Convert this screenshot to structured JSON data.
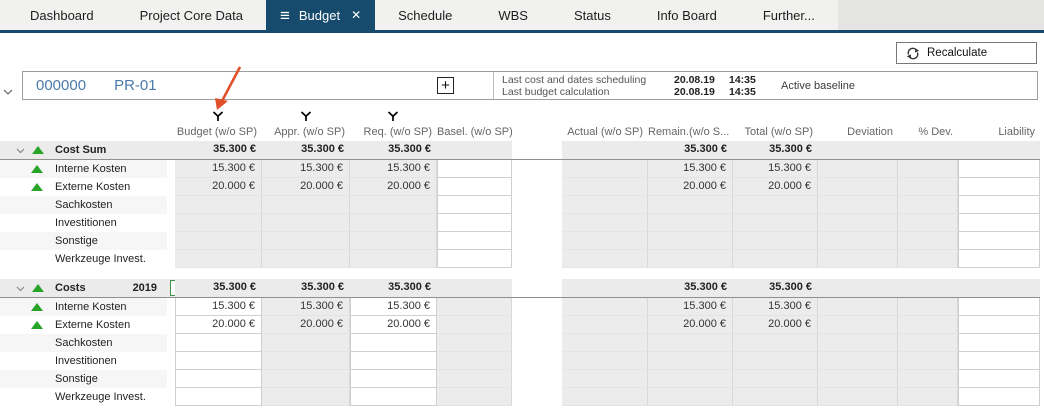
{
  "tabs": [
    {
      "label": "Dashboard",
      "active": false
    },
    {
      "label": "Project Core Data",
      "active": false
    },
    {
      "label": "Budget",
      "active": true
    },
    {
      "label": "Schedule",
      "active": false
    },
    {
      "label": "WBS",
      "active": false
    },
    {
      "label": "Status",
      "active": false
    },
    {
      "label": "Info Board",
      "active": false
    },
    {
      "label": "Further...",
      "active": false
    }
  ],
  "toolbar": {
    "recalculate_label": "Recalculate"
  },
  "project": {
    "number": "000000",
    "id": "PR-01",
    "add_button": "+",
    "info_rows": [
      {
        "label": "Last cost and dates scheduling",
        "date": "20.08.19",
        "time": "14:35"
      },
      {
        "label": "Last budget calculation",
        "date": "20.08.19",
        "time": "14:35"
      }
    ],
    "baseline": "Active baseline"
  },
  "colors": {
    "accent_blue": "#174b6d",
    "link_blue": "#4d7aa8",
    "indicator_green": "#28a428",
    "annotation_arrow": "#e0512b",
    "disabled_cell": "#ececec",
    "group_row": "#ebebeb"
  },
  "annotation": {
    "type": "arrow",
    "points_at": "budget-column-filter"
  },
  "table": {
    "columns": [
      "Budget (w/o SP)",
      "Appr. (w/o SP)",
      "Req. (w/o SP)",
      "Basel. (w/o SP)",
      "Actual (w/o SP)",
      "Remain.(w/o S...",
      "Total (w/o SP)",
      "Deviation",
      "% Dev.",
      "Liability"
    ],
    "column_keys": [
      "budget",
      "appr",
      "req",
      "basel",
      "actual",
      "remain",
      "total",
      "deviation",
      "pdev",
      "liability"
    ],
    "filter_icon_columns": [
      0,
      1,
      2
    ],
    "groups": [
      {
        "title": "Cost Sum",
        "year": "",
        "checkbox": null,
        "indicator": true,
        "values": [
          "35.300 €",
          "35.300 €",
          "35.300 €",
          "",
          "",
          "35.300 €",
          "35.300 €",
          "",
          "",
          ""
        ],
        "editable_cols": [
          3,
          9
        ],
        "rows": [
          {
            "label": "Interne Kosten",
            "indicator": true,
            "values": [
              "15.300 €",
              "15.300 €",
              "15.300 €",
              "",
              "",
              "15.300 €",
              "15.300 €",
              "",
              "",
              ""
            ]
          },
          {
            "label": "Externe Kosten",
            "indicator": true,
            "values": [
              "20.000 €",
              "20.000 €",
              "20.000 €",
              "",
              "",
              "20.000 €",
              "20.000 €",
              "",
              "",
              ""
            ]
          },
          {
            "label": "Sachkosten",
            "indicator": false,
            "values": [
              "",
              "",
              "",
              "",
              "",
              "",
              "",
              "",
              "",
              ""
            ]
          },
          {
            "label": "Investitionen",
            "indicator": false,
            "values": [
              "",
              "",
              "",
              "",
              "",
              "",
              "",
              "",
              "",
              ""
            ]
          },
          {
            "label": "Sonstige",
            "indicator": false,
            "values": [
              "",
              "",
              "",
              "",
              "",
              "",
              "",
              "",
              "",
              ""
            ]
          },
          {
            "label": "Werkzeuge Invest.",
            "indicator": false,
            "values": [
              "",
              "",
              "",
              "",
              "",
              "",
              "",
              "",
              "",
              ""
            ]
          }
        ]
      },
      {
        "title": "Costs",
        "year": "2019",
        "checkbox": true,
        "indicator": true,
        "values": [
          "35.300 €",
          "35.300 €",
          "35.300 €",
          "",
          "",
          "35.300 €",
          "35.300 €",
          "",
          "",
          ""
        ],
        "editable_cols": [
          0,
          2,
          9
        ],
        "rows": [
          {
            "label": "Interne Kosten",
            "indicator": true,
            "values": [
              "15.300 €",
              "15.300 €",
              "15.300 €",
              "",
              "",
              "15.300 €",
              "15.300 €",
              "",
              "",
              ""
            ]
          },
          {
            "label": "Externe Kosten",
            "indicator": true,
            "values": [
              "20.000 €",
              "20.000 €",
              "20.000 €",
              "",
              "",
              "20.000 €",
              "20.000 €",
              "",
              "",
              ""
            ]
          },
          {
            "label": "Sachkosten",
            "indicator": false,
            "values": [
              "",
              "",
              "",
              "",
              "",
              "",
              "",
              "",
              "",
              ""
            ]
          },
          {
            "label": "Investitionen",
            "indicator": false,
            "values": [
              "",
              "",
              "",
              "",
              "",
              "",
              "",
              "",
              "",
              ""
            ]
          },
          {
            "label": "Sonstige",
            "indicator": false,
            "values": [
              "",
              "",
              "",
              "",
              "",
              "",
              "",
              "",
              "",
              ""
            ]
          },
          {
            "label": "Werkzeuge Invest.",
            "indicator": false,
            "values": [
              "",
              "",
              "",
              "",
              "",
              "",
              "",
              "",
              "",
              ""
            ]
          }
        ]
      }
    ]
  }
}
